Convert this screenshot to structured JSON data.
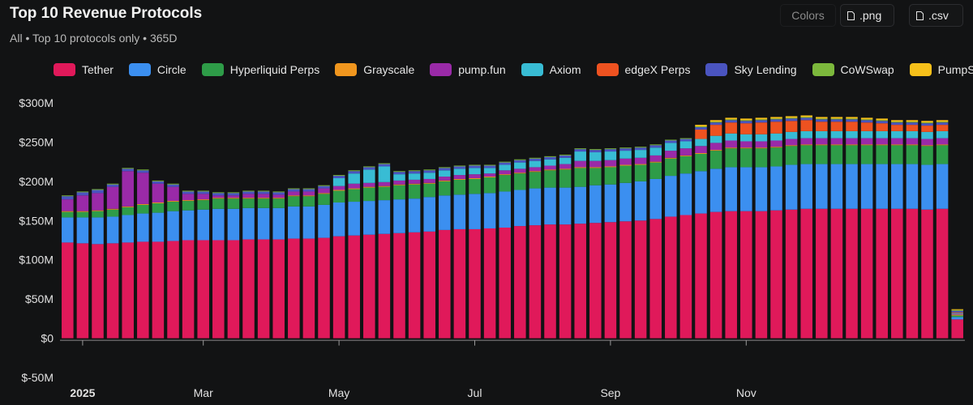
{
  "header": {
    "title": "Top 10 Revenue Protocols",
    "subtitle": "All • Top 10 protocols only • 365D"
  },
  "toolbar": {
    "colors_label": "Colors",
    "png_label": ".png",
    "csv_label": ".csv"
  },
  "legend": [
    {
      "name": "Tether",
      "color": "#e0195a"
    },
    {
      "name": "Circle",
      "color": "#3b8ff0"
    },
    {
      "name": "Hyperliquid Perps",
      "color": "#2e9c48"
    },
    {
      "name": "Grayscale",
      "color": "#f0961e"
    },
    {
      "name": "pump.fun",
      "color": "#9a2aa8"
    },
    {
      "name": "Axiom",
      "color": "#38bcd4"
    },
    {
      "name": "edgeX Perps",
      "color": "#ee5220"
    },
    {
      "name": "Sky Lending",
      "color": "#4a54c0"
    },
    {
      "name": "CoWSwap",
      "color": "#7cb83c"
    },
    {
      "name": "PumpSwap",
      "color": "#f6c01a"
    }
  ],
  "chart_data": {
    "type": "bar",
    "stacked": true,
    "title": "Top 10 Revenue Protocols",
    "ylim": [
      -50,
      300
    ],
    "y_ticks": [
      "$300M",
      "$250M",
      "$200M",
      "$150M",
      "$100M",
      "$50M",
      "$0",
      "$-50M"
    ],
    "y_tick_values": [
      300,
      250,
      200,
      150,
      100,
      50,
      0,
      -50
    ],
    "x_ticks": [
      {
        "label": "2025",
        "bar_index": 1,
        "bold": true
      },
      {
        "label": "Mar",
        "bar_index": 9,
        "bold": false
      },
      {
        "label": "May",
        "bar_index": 18,
        "bold": false
      },
      {
        "label": "Jul",
        "bar_index": 27,
        "bold": false
      },
      {
        "label": "Sep",
        "bar_index": 36,
        "bold": false
      },
      {
        "label": "Nov",
        "bar_index": 45,
        "bold": false
      }
    ],
    "grid": false,
    "legend_position": "top",
    "series": [
      {
        "name": "Tether",
        "values": [
          122,
          121,
          120,
          121,
          122,
          123,
          123,
          124,
          125,
          125,
          125,
          125,
          126,
          126,
          126,
          127,
          127,
          128,
          130,
          131,
          132,
          133,
          134,
          135,
          136,
          138,
          139,
          139,
          140,
          141,
          143,
          144,
          145,
          145,
          146,
          147,
          148,
          149,
          150,
          152,
          155,
          157,
          159,
          161,
          162,
          162,
          162,
          163,
          164,
          165,
          165,
          165,
          165,
          165,
          165,
          165,
          165,
          164,
          165,
          24
        ]
      },
      {
        "name": "Circle",
        "values": [
          32,
          33,
          34,
          34,
          35,
          36,
          37,
          38,
          38,
          39,
          40,
          40,
          40,
          40,
          40,
          41,
          41,
          42,
          43,
          43,
          43,
          43,
          43,
          43,
          44,
          44,
          44,
          45,
          45,
          46,
          46,
          47,
          47,
          47,
          47,
          48,
          48,
          49,
          50,
          51,
          52,
          53,
          54,
          55,
          56,
          56,
          56,
          56,
          57,
          57,
          57,
          57,
          57,
          57,
          57,
          57,
          57,
          57,
          57,
          3
        ]
      },
      {
        "name": "Hyperliquid Perps",
        "values": [
          7,
          7,
          8,
          9,
          10,
          11,
          12,
          12,
          12,
          12,
          13,
          13,
          12,
          12,
          12,
          13,
          13,
          14,
          15,
          16,
          17,
          17,
          18,
          18,
          17,
          18,
          19,
          19,
          20,
          21,
          21,
          21,
          22,
          23,
          24,
          22,
          22,
          22,
          21,
          21,
          22,
          22,
          22,
          23,
          24,
          24,
          24,
          24,
          24,
          24,
          24,
          24,
          24,
          24,
          24,
          24,
          24,
          24,
          24,
          2
        ]
      },
      {
        "name": "Grayscale",
        "values": [
          1,
          1,
          1,
          1,
          1,
          1,
          1,
          1,
          1,
          1,
          1,
          1,
          1,
          1,
          1,
          1,
          1,
          1,
          1,
          1,
          1,
          1,
          1,
          1,
          1,
          1,
          1,
          1,
          1,
          1,
          1,
          1,
          1,
          1,
          1,
          1,
          1,
          1,
          1,
          1,
          1,
          1,
          1,
          1,
          1,
          1,
          1,
          1,
          1,
          1,
          1,
          1,
          1,
          1,
          1,
          1,
          1,
          1,
          1,
          1
        ]
      },
      {
        "name": "pump.fun",
        "values": [
          15,
          20,
          22,
          28,
          45,
          40,
          24,
          18,
          8,
          7,
          3,
          3,
          5,
          5,
          4,
          5,
          5,
          6,
          5,
          6,
          5,
          5,
          5,
          5,
          5,
          5,
          5,
          5,
          4,
          5,
          5,
          5,
          5,
          6,
          8,
          8,
          8,
          8,
          8,
          8,
          9,
          9,
          9,
          9,
          9,
          8,
          8,
          8,
          8,
          8,
          8,
          8,
          8,
          8,
          8,
          8,
          8,
          8,
          8,
          1
        ]
      },
      {
        "name": "Axiom",
        "values": [
          0,
          0,
          0,
          0,
          0,
          0,
          0,
          0,
          0,
          0,
          0,
          0,
          0,
          0,
          0,
          0,
          0,
          0,
          10,
          13,
          17,
          20,
          8,
          8,
          8,
          8,
          8,
          8,
          7,
          7,
          8,
          8,
          8,
          8,
          12,
          11,
          11,
          10,
          10,
          10,
          10,
          9,
          9,
          9,
          9,
          9,
          9,
          9,
          9,
          9,
          9,
          9,
          9,
          9,
          9,
          9,
          9,
          9,
          9,
          1
        ]
      },
      {
        "name": "edgeX Perps",
        "values": [
          0,
          0,
          0,
          0,
          0,
          0,
          0,
          0,
          0,
          0,
          0,
          0,
          0,
          0,
          0,
          0,
          0,
          0,
          0,
          0,
          0,
          0,
          0,
          0,
          0,
          0,
          0,
          0,
          0,
          0,
          0,
          0,
          0,
          0,
          0,
          0,
          0,
          0,
          0,
          0,
          0,
          0,
          12,
          14,
          14,
          14,
          15,
          15,
          14,
          14,
          12,
          12,
          12,
          11,
          10,
          8,
          8,
          8,
          8,
          1
        ]
      },
      {
        "name": "Sky Lending",
        "values": [
          4,
          4,
          4,
          3,
          3,
          3,
          3,
          3,
          3,
          3,
          3,
          3,
          3,
          3,
          3,
          3,
          3,
          3,
          3,
          3,
          3,
          3,
          3,
          3,
          3,
          3,
          3,
          3,
          3,
          3,
          3,
          3,
          3,
          3,
          3,
          3,
          3,
          3,
          3,
          3,
          3,
          3,
          3,
          3,
          3,
          3,
          3,
          3,
          3,
          3,
          3,
          3,
          3,
          3,
          3,
          3,
          3,
          3,
          3,
          2
        ]
      },
      {
        "name": "CoWSwap",
        "values": [
          1,
          1,
          1,
          1,
          1,
          1,
          1,
          1,
          1,
          1,
          1,
          1,
          1,
          1,
          1,
          1,
          1,
          1,
          1,
          1,
          1,
          1,
          1,
          1,
          1,
          1,
          1,
          1,
          1,
          1,
          1,
          1,
          1,
          1,
          1,
          1,
          1,
          1,
          1,
          1,
          1,
          1,
          1,
          1,
          1,
          1,
          1,
          1,
          1,
          1,
          1,
          1,
          1,
          1,
          1,
          1,
          1,
          1,
          1,
          1
        ]
      },
      {
        "name": "PumpSwap",
        "values": [
          0,
          0,
          0,
          0,
          0,
          0,
          0,
          0,
          0,
          0,
          0,
          0,
          0,
          0,
          0,
          0,
          0,
          0,
          0,
          0,
          0,
          0,
          0,
          0,
          0,
          0,
          0,
          0,
          0,
          0,
          0,
          0,
          0,
          0,
          0,
          0,
          0,
          0,
          0,
          0,
          0,
          0,
          2,
          2,
          2,
          2,
          2,
          2,
          2,
          2,
          2,
          2,
          2,
          2,
          2,
          2,
          2,
          2,
          2,
          1
        ]
      }
    ]
  }
}
